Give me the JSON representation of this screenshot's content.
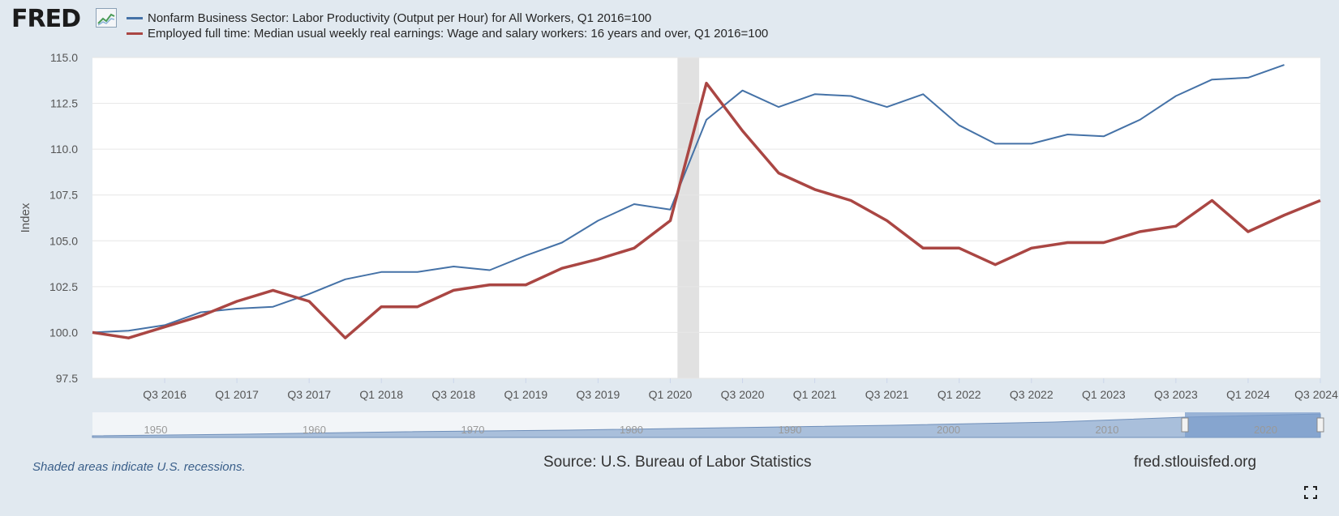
{
  "logo": "FRED",
  "chart_data": {
    "type": "line",
    "ylabel": "Index",
    "ylim": [
      97.5,
      115.0
    ],
    "yticks": [
      "97.5",
      "100.0",
      "102.5",
      "105.0",
      "107.5",
      "110.0",
      "112.5",
      "115.0"
    ],
    "x_tick_labels": [
      "Q3 2016",
      "Q1 2017",
      "Q3 2017",
      "Q1 2018",
      "Q3 2018",
      "Q1 2019",
      "Q3 2019",
      "Q1 2020",
      "Q3 2020",
      "Q1 2021",
      "Q3 2021",
      "Q1 2022",
      "Q3 2022",
      "Q1 2023",
      "Q3 2023",
      "Q1 2024",
      "Q3 2024"
    ],
    "x_start": "Q1 2016",
    "recession": {
      "from": 16.2,
      "to": 16.8
    },
    "series": [
      {
        "name": "Nonfarm Business Sector: Labor Productivity (Output per Hour) for All Workers, Q1 2016=100",
        "color": "#4572a7",
        "values": [
          100.0,
          100.1,
          100.4,
          101.1,
          101.3,
          101.4,
          102.1,
          102.9,
          103.3,
          103.3,
          103.6,
          103.4,
          104.2,
          104.9,
          106.1,
          107.0,
          106.7,
          111.6,
          113.2,
          112.3,
          113.0,
          112.9,
          112.3,
          113.0,
          111.3,
          110.3,
          110.3,
          110.8,
          110.7,
          111.6,
          112.9,
          113.8,
          113.9,
          114.6
        ],
        "stroke": 2
      },
      {
        "name": "Employed full time: Median usual weekly real earnings: Wage and salary workers: 16 years and over, Q1 2016=100",
        "color": "#aa4643",
        "values": [
          100.0,
          99.7,
          100.3,
          100.9,
          101.7,
          102.3,
          101.7,
          99.7,
          101.4,
          101.4,
          102.3,
          102.6,
          102.6,
          103.5,
          104.0,
          104.6,
          106.1,
          113.6,
          111.0,
          108.7,
          107.8,
          107.2,
          106.1,
          104.6,
          104.6,
          103.7,
          104.6,
          104.9,
          104.9,
          105.5,
          105.8,
          107.2,
          105.5,
          106.4,
          107.2
        ],
        "stroke": 3.5
      }
    ]
  },
  "navigator": {
    "labels": [
      "1950",
      "1960",
      "1970",
      "1980",
      "1990",
      "2000",
      "2010",
      "2020"
    ]
  },
  "footer": {
    "note": "Shaded areas indicate U.S. recessions.",
    "source": "Source: U.S. Bureau of Labor Statistics",
    "url": "fred.stlouisfed.org"
  }
}
